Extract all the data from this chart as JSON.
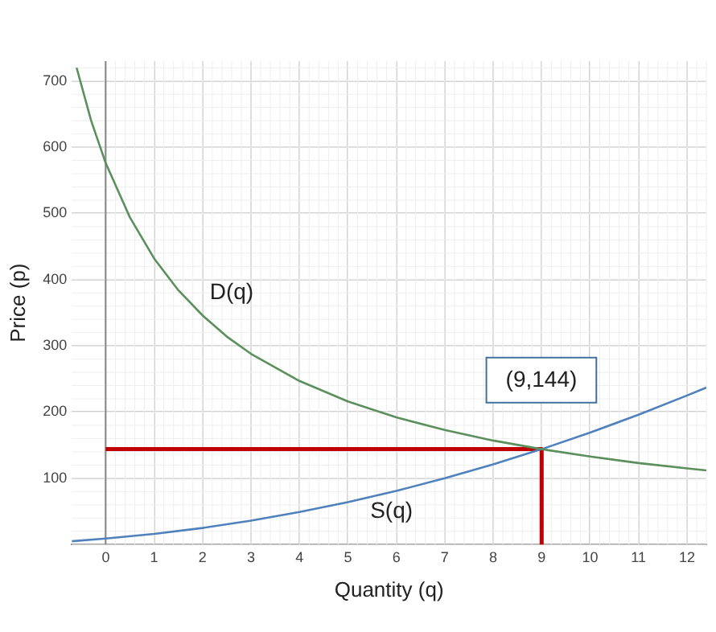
{
  "chart_data": {
    "type": "line",
    "xlabel": "Quantity (q)",
    "ylabel": "Price (p)",
    "xlim": [
      -0.7,
      12.4
    ],
    "ylim": [
      0,
      730
    ],
    "xticks": [
      0,
      1,
      2,
      3,
      4,
      5,
      6,
      7,
      8,
      9,
      10,
      11,
      12
    ],
    "yticks": [
      100,
      200,
      300,
      400,
      500,
      600,
      700
    ],
    "grid": true,
    "legend": false,
    "marker": "none",
    "line_style": "solid",
    "series": [
      {
        "name": "D(q)",
        "color": "#5b8f5b",
        "x": [
          -0.6,
          -0.3,
          0,
          0.5,
          1,
          1.5,
          2,
          2.5,
          3,
          4,
          5,
          6,
          7,
          8,
          9,
          10,
          11,
          12,
          12.4
        ],
        "values": [
          720,
          640,
          576,
          494,
          432,
          384,
          346,
          314,
          288,
          247,
          216,
          192,
          173,
          157,
          144,
          133,
          123,
          115,
          112
        ]
      },
      {
        "name": "S(q)",
        "color": "#4f81bd",
        "x": [
          -0.7,
          0,
          1,
          2,
          3,
          4,
          5,
          6,
          7,
          8,
          9,
          10,
          11,
          12,
          12.4
        ],
        "values": [
          5,
          9,
          16,
          25,
          36,
          49,
          64,
          81,
          100,
          121,
          144,
          169,
          196,
          225,
          237
        ]
      },
      {
        "color": "#c00000",
        "x": [
          0,
          9,
          9
        ],
        "values": [
          144,
          144,
          0
        ]
      }
    ],
    "annotations": [
      "(9,144)"
    ]
  }
}
